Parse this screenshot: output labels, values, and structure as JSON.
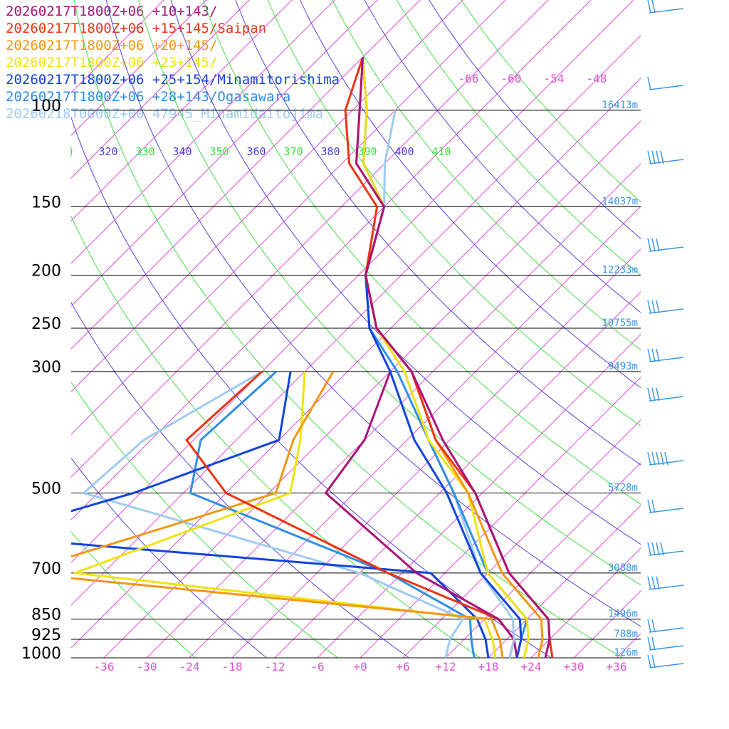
{
  "legend": [
    {
      "label": "20260217T1800Z+06 +10+143/",
      "color": "#aa1377"
    },
    {
      "label": "20260217T1800Z+06 +15+145/Saipan",
      "color": "#ee3311"
    },
    {
      "label": "20260217T1800Z+06 +20+145/",
      "color": "#f49712"
    },
    {
      "label": "20260217T1800Z+06 +23+145/",
      "color": "#f0e310"
    },
    {
      "label": "20260217T1800Z+06 +25+154/Minamitorishima",
      "color": "#1144dd"
    },
    {
      "label": "20260217T1800Z+06 +28+143/Ogasawara",
      "color": "#2f8ee8"
    },
    {
      "label": "20260218T0000Z+00 47945_Minamidaitojima",
      "color": "#9ecbf4"
    }
  ],
  "chart_data": {
    "type": "line",
    "title": "",
    "xlabel": "",
    "ylabel": "",
    "pressure_levels": [
      100,
      150,
      200,
      250,
      300,
      500,
      700,
      850,
      925,
      1000
    ],
    "pressure_labels": [
      "100",
      "150",
      "200",
      "250",
      "300",
      "500",
      "700",
      "850",
      "925",
      "1000"
    ],
    "heights": [
      "16413m",
      "14037m",
      "12233m",
      "10755m",
      "9493m",
      "5728m",
      "3088m",
      "1496m",
      "788m",
      "126m"
    ],
    "temp_ticks": [
      "-36",
      "-30",
      "-24",
      "-18",
      "-12",
      "-6",
      "+0",
      "+6",
      "+12",
      "+18",
      "+24",
      "+30",
      "+36"
    ],
    "isotherm_labels": [
      "-66",
      "-60",
      "-54",
      "-48"
    ],
    "theta_labels": [
      {
        "text": ")",
        "color": "#39e439"
      },
      {
        "text": "320",
        "color": "#4b3fd8"
      },
      {
        "text": "330",
        "color": "#39e439"
      },
      {
        "text": "340",
        "color": "#4b3fd8"
      },
      {
        "text": "350",
        "color": "#39e439"
      },
      {
        "text": "360",
        "color": "#4b3fd8"
      },
      {
        "text": "370",
        "color": "#39e439"
      },
      {
        "text": "380",
        "color": "#4b3fd8"
      },
      {
        "text": "390",
        "color": "#39e439"
      },
      {
        "text": "400",
        "color": "#4b3fd8"
      },
      {
        "text": "410",
        "color": "#39e439"
      }
    ],
    "temperature_series": [
      {
        "color": "#aa1377",
        "points": [
          [
            80,
            -84
          ],
          [
            100,
            -77
          ],
          [
            125,
            -70
          ],
          [
            150,
            -60
          ],
          [
            200,
            -53
          ],
          [
            250,
            -44
          ],
          [
            300,
            -33
          ],
          [
            400,
            -19
          ],
          [
            500,
            -7
          ],
          [
            700,
            9
          ],
          [
            850,
            21
          ],
          [
            925,
            24
          ],
          [
            1000,
            26
          ]
        ]
      },
      {
        "color": "#ee3311",
        "points": [
          [
            80,
            -84
          ],
          [
            100,
            -79
          ],
          [
            125,
            -71
          ],
          [
            150,
            -61
          ],
          [
            200,
            -53
          ],
          [
            250,
            -44
          ],
          [
            300,
            -33
          ],
          [
            400,
            -20
          ],
          [
            500,
            -7
          ],
          [
            700,
            9
          ],
          [
            850,
            21
          ],
          [
            925,
            24
          ],
          [
            1000,
            27
          ]
        ]
      },
      {
        "color": "#f49712",
        "points": [
          [
            80,
            -84
          ],
          [
            100,
            -77
          ],
          [
            125,
            -70
          ],
          [
            150,
            -60
          ],
          [
            200,
            -53
          ],
          [
            250,
            -44
          ],
          [
            300,
            -33
          ],
          [
            400,
            -20
          ],
          [
            500,
            -8
          ],
          [
            700,
            8
          ],
          [
            850,
            20
          ],
          [
            925,
            23
          ],
          [
            1000,
            25
          ]
        ]
      },
      {
        "color": "#f0e310",
        "points": [
          [
            80,
            -84
          ],
          [
            100,
            -76
          ],
          [
            125,
            -69
          ],
          [
            150,
            -60
          ],
          [
            200,
            -53
          ],
          [
            250,
            -44
          ],
          [
            300,
            -34
          ],
          [
            400,
            -21
          ],
          [
            500,
            -8
          ],
          [
            700,
            6
          ],
          [
            850,
            18
          ],
          [
            925,
            21
          ],
          [
            1000,
            23
          ]
        ]
      },
      {
        "color": "#1144dd",
        "points": [
          [
            80,
            -84
          ],
          [
            100,
            -76
          ],
          [
            125,
            -69
          ],
          [
            150,
            -60
          ],
          [
            200,
            -53
          ],
          [
            250,
            -45
          ],
          [
            300,
            -36
          ],
          [
            400,
            -23
          ],
          [
            500,
            -11
          ],
          [
            700,
            5
          ],
          [
            850,
            17
          ],
          [
            925,
            20
          ],
          [
            1000,
            22
          ]
        ]
      },
      {
        "color": "#2f8ee8",
        "points": [
          [
            80,
            -84
          ],
          [
            100,
            -76
          ],
          [
            125,
            -69
          ],
          [
            150,
            -60
          ],
          [
            200,
            -53
          ],
          [
            250,
            -45
          ],
          [
            300,
            -35
          ],
          [
            400,
            -21
          ],
          [
            500,
            -10
          ],
          [
            700,
            6
          ],
          [
            850,
            18
          ],
          [
            925,
            20
          ],
          [
            1000,
            22
          ]
        ]
      },
      {
        "color": "#9ecbf4",
        "points": [
          [
            100,
            -72
          ],
          [
            125,
            -66
          ],
          [
            150,
            -60
          ],
          [
            200,
            -53
          ],
          [
            250,
            -44
          ],
          [
            300,
            -34
          ],
          [
            400,
            -21
          ],
          [
            500,
            -10
          ],
          [
            700,
            5
          ],
          [
            850,
            16
          ],
          [
            925,
            19
          ],
          [
            1000,
            21
          ]
        ]
      }
    ],
    "dewpoint_series": [
      {
        "color": "#aa1377",
        "points": [
          [
            300,
            -36
          ],
          [
            400,
            -30
          ],
          [
            500,
            -28
          ],
          [
            700,
            -4
          ],
          [
            850,
            14
          ],
          [
            925,
            19
          ],
          [
            1000,
            22
          ]
        ]
      },
      {
        "color": "#ee3311",
        "points": [
          [
            300,
            -54
          ],
          [
            400,
            -55
          ],
          [
            500,
            -42
          ],
          [
            700,
            -8
          ],
          [
            850,
            14
          ],
          [
            925,
            19
          ],
          [
            1000,
            21
          ]
        ]
      },
      {
        "color": "#f49712",
        "points": [
          [
            300,
            -44
          ],
          [
            400,
            -40
          ],
          [
            500,
            -35
          ],
          [
            700,
            -60
          ],
          [
            850,
            13
          ],
          [
            925,
            17
          ],
          [
            1000,
            20
          ]
        ]
      },
      {
        "color": "#f0e310",
        "points": [
          [
            300,
            -48
          ],
          [
            400,
            -39
          ],
          [
            500,
            -33
          ],
          [
            700,
            -52
          ],
          [
            850,
            12
          ],
          [
            925,
            16
          ],
          [
            1000,
            19
          ]
        ]
      },
      {
        "color": "#1144dd",
        "points": [
          [
            300,
            -50
          ],
          [
            400,
            -42
          ],
          [
            500,
            -55
          ],
          [
            600,
            -70
          ],
          [
            700,
            -2
          ],
          [
            850,
            11
          ],
          [
            925,
            15
          ],
          [
            1000,
            18
          ]
        ]
      },
      {
        "color": "#2f8ee8",
        "points": [
          [
            300,
            -52
          ],
          [
            400,
            -53
          ],
          [
            500,
            -47
          ],
          [
            700,
            -8
          ],
          [
            850,
            10
          ],
          [
            925,
            13
          ],
          [
            1000,
            16
          ]
        ]
      },
      {
        "color": "#9ecbf4",
        "points": [
          [
            300,
            -54
          ],
          [
            400,
            -61
          ],
          [
            500,
            -62
          ],
          [
            700,
            -12
          ],
          [
            850,
            9
          ],
          [
            925,
            10
          ],
          [
            1000,
            12
          ]
        ]
      }
    ]
  }
}
